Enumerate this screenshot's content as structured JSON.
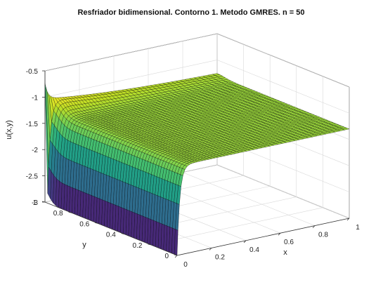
{
  "chart_data": {
    "type": "surface",
    "title": "Resfriador bidimensional. Contorno 1. Metodo GMRES. n = 50",
    "xlabel": "x",
    "ylabel": "y",
    "zlabel": "u(x,y)",
    "xlim": [
      0,
      1
    ],
    "ylim": [
      0,
      1
    ],
    "zlim": [
      -3,
      -0.5
    ],
    "xticks": [
      "0",
      "0.2",
      "0.4",
      "0.6",
      "0.8",
      "1"
    ],
    "yticks": [
      "0",
      "0.2",
      "0.4",
      "0.6",
      "0.8",
      "1"
    ],
    "zticks": [
      "-3",
      "-2.5",
      "-2",
      "-1.5",
      "-1",
      "-0.5"
    ],
    "grid": true,
    "colormap": "viridis",
    "grid_points": 50,
    "boundary": {
      "x0_edge_value": -3,
      "plateau_value": -1.3,
      "corner_value_x0_y1": -1
    }
  }
}
